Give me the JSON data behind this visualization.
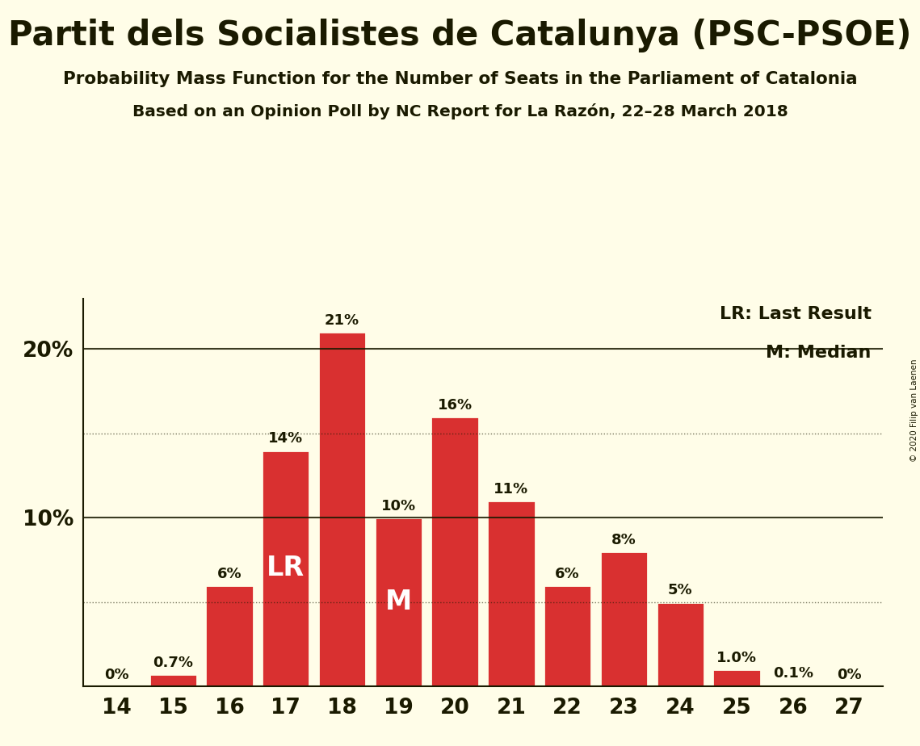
{
  "title": "Partit dels Socialistes de Catalunya (PSC-PSOE)",
  "subtitle1": "Probability Mass Function for the Number of Seats in the Parliament of Catalonia",
  "subtitle2": "Based on an Opinion Poll by NC Report for La Razón, 22–28 March 2018",
  "copyright": "© 2020 Filip van Laenen",
  "seats": [
    14,
    15,
    16,
    17,
    18,
    19,
    20,
    21,
    22,
    23,
    24,
    25,
    26,
    27
  ],
  "probabilities": [
    0.0,
    0.7,
    6.0,
    14.0,
    21.0,
    10.0,
    16.0,
    11.0,
    6.0,
    8.0,
    5.0,
    1.0,
    0.1,
    0.0
  ],
  "bar_color": "#d93030",
  "bar_edge_color": "#fffde8",
  "background_color": "#fffde8",
  "text_color": "#1a1a00",
  "label_texts": [
    "0%",
    "0.7%",
    "6%",
    "14%",
    "21%",
    "10%",
    "16%",
    "11%",
    "6%",
    "8%",
    "5%",
    "1.0%",
    "0.1%",
    "0%"
  ],
  "lr_seat": 17,
  "median_seat": 19,
  "yticks": [
    10,
    20
  ],
  "ytick_labels": [
    "10%",
    "20%"
  ],
  "ylim": [
    0,
    23
  ],
  "legend_lr": "LR: Last Result",
  "legend_m": "M: Median",
  "dotted_lines": [
    5,
    15
  ],
  "solid_lines": [
    10,
    20
  ]
}
